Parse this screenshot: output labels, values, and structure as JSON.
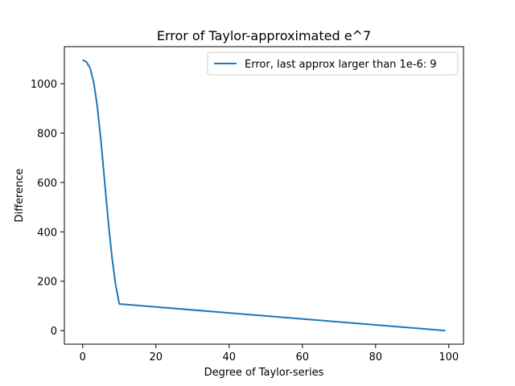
{
  "chart_data": {
    "type": "line",
    "title": "Error of Taylor-approximated e^7",
    "xlabel": "Degree of Taylor-series",
    "ylabel": "Difference",
    "xlim": [
      -5,
      104
    ],
    "ylim": [
      -55,
      1150
    ],
    "xticks": [
      0,
      20,
      40,
      60,
      80,
      100
    ],
    "yticks": [
      0,
      200,
      400,
      600,
      800,
      1000
    ],
    "grid": false,
    "legend_position": "top-right",
    "series": [
      {
        "name": "Error, last approx larger than 1e-6: 9",
        "color": "#1f77b4",
        "x": [
          0,
          1,
          2,
          3,
          4,
          5,
          6,
          7,
          8,
          9,
          10,
          99
        ],
        "y": [
          1095.6,
          1088.6,
          1064.1,
          1006.9,
          906.9,
          766.8,
          603.4,
          440.0,
          297.0,
          185.8,
          108.0,
          0
        ]
      }
    ]
  }
}
